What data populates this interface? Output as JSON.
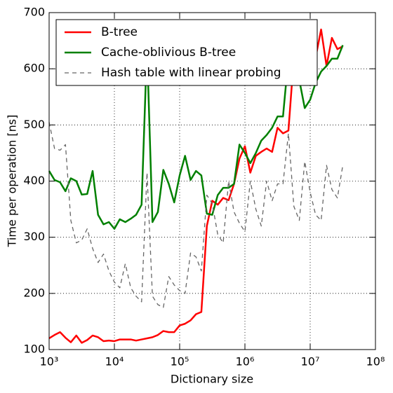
{
  "chart_data": {
    "type": "line",
    "xlabel": "Dictionary size",
    "ylabel": "Time per operation [ns]",
    "xscale": "log",
    "xlim": [
      1000,
      100000000
    ],
    "ylim": [
      100,
      700
    ],
    "xticks": [
      {
        "value": 1000,
        "label": "10³"
      },
      {
        "value": 10000,
        "label": "10⁴"
      },
      {
        "value": 100000,
        "label": "10⁵"
      },
      {
        "value": 1000000,
        "label": "10⁶"
      },
      {
        "value": 10000000,
        "label": "10⁷"
      },
      {
        "value": 100000000,
        "label": "10⁸"
      }
    ],
    "yticks": [
      100,
      200,
      300,
      400,
      500,
      600,
      700
    ],
    "grid": true,
    "legend": "upper left",
    "x": [
      1000,
      1210,
      1470,
      1780,
      2150,
      2610,
      3160,
      3830,
      4640,
      5620,
      6810,
      8250,
      10000,
      12100,
      14700,
      17800,
      21500,
      26100,
      31600,
      38300,
      46400,
      56200,
      68100,
      82500,
      100000,
      121000,
      147000,
      178000,
      215000,
      261000,
      316000,
      383000,
      464000,
      562000,
      681000,
      825000,
      1000000,
      1210000,
      1470000,
      1780000,
      2150000,
      2610000,
      3160000,
      3830000,
      4640000,
      5620000,
      6810000,
      8250000,
      10000000,
      12100000,
      14700000,
      17800000,
      21500000,
      26100000,
      31600000
    ],
    "series": [
      {
        "name": "B-tree",
        "color": "#ff0000",
        "linestyle": "solid",
        "values": [
          120,
          126,
          131,
          121,
          113,
          125,
          112,
          117,
          125,
          122,
          115,
          116,
          115,
          118,
          118,
          118,
          116,
          118,
          120,
          122,
          126,
          133,
          131,
          131,
          143,
          146,
          152,
          163,
          167,
          320,
          365,
          358,
          370,
          366,
          395,
          440,
          462,
          415,
          445,
          452,
          458,
          452,
          495,
          485,
          490,
          620,
          600,
          650,
          580,
          620,
          670,
          605,
          655,
          635,
          640
        ]
      },
      {
        "name": "Cache-oblivious B-tree",
        "color": "#008000",
        "linestyle": "solid",
        "values": [
          418,
          402,
          398,
          382,
          405,
          400,
          376,
          377,
          418,
          340,
          323,
          327,
          315,
          332,
          327,
          333,
          340,
          358,
          640,
          327,
          345,
          420,
          395,
          362,
          410,
          445,
          402,
          418,
          410,
          342,
          340,
          375,
          388,
          388,
          395,
          465,
          450,
          432,
          450,
          472,
          482,
          495,
          515,
          515,
          620,
          620,
          580,
          530,
          545,
          575,
          595,
          605,
          618,
          618,
          642
        ]
      },
      {
        "name": "Hash table with linear probing",
        "color": "#666666",
        "linestyle": "dashed",
        "values": [
          505,
          458,
          455,
          465,
          330,
          290,
          295,
          315,
          280,
          255,
          270,
          240,
          220,
          210,
          253,
          210,
          195,
          185,
          415,
          195,
          180,
          175,
          230,
          215,
          205,
          200,
          272,
          265,
          240,
          375,
          360,
          305,
          290,
          400,
          345,
          325,
          310,
          400,
          350,
          320,
          400,
          365,
          395,
          395,
          485,
          355,
          330,
          435,
          380,
          340,
          330,
          428,
          385,
          370,
          428
        ]
      }
    ]
  }
}
